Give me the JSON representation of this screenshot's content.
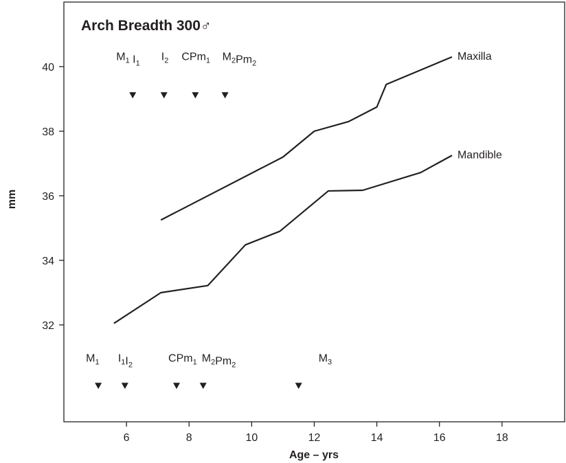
{
  "chart_data": {
    "type": "line",
    "title": "Arch Breadth 300♂",
    "xlabel": "Age – yrs",
    "ylabel": "mm",
    "xlim": [
      4,
      20
    ],
    "xticks": [
      6,
      8,
      10,
      12,
      14,
      16,
      18
    ],
    "ylim": [
      29,
      42
    ],
    "yticks": [
      32,
      34,
      36,
      38,
      40
    ],
    "grid": false,
    "series": [
      {
        "name": "Maxilla",
        "color": "#231f20",
        "x": [
          7.1,
          11.0,
          12.0,
          13.1,
          14.0,
          14.3,
          16.4
        ],
        "values": [
          35.25,
          37.2,
          38.0,
          38.3,
          38.75,
          39.45,
          40.3
        ]
      },
      {
        "name": "Mandible",
        "color": "#231f20",
        "x": [
          5.6,
          7.1,
          8.6,
          9.8,
          10.9,
          12.45,
          13.55,
          15.4,
          16.4
        ],
        "values": [
          32.05,
          33.0,
          33.22,
          34.48,
          34.9,
          36.15,
          36.17,
          36.72,
          37.25
        ]
      }
    ],
    "annotations": [
      {
        "markers": [
          {
            "x": 6.2,
            "y": 39.1
          },
          {
            "x": 7.2,
            "y": 39.1
          },
          {
            "x": 8.2,
            "y": 39.1
          },
          {
            "x": 9.15,
            "y": 39.1
          }
        ],
        "labels": [
          [
            {
              "text": "M",
              "sub": "1"
            },
            {
              "text": " I",
              "sub": "1"
            }
          ],
          [
            {
              "text": "I",
              "sub": "2"
            }
          ],
          [
            {
              "text": "CPm",
              "sub": "1"
            }
          ],
          [
            {
              "text": "M",
              "sub": "2"
            },
            {
              "text": "Pm",
              "sub": "2"
            }
          ]
        ]
      },
      {
        "markers": [
          {
            "x": 5.1,
            "y": 30.1
          },
          {
            "x": 5.95,
            "y": 30.1
          },
          {
            "x": 7.6,
            "y": 30.1
          },
          {
            "x": 8.45,
            "y": 30.1
          },
          {
            "x": 11.5,
            "y": 30.1
          }
        ],
        "labels": [
          [
            {
              "text": "M",
              "sub": "1"
            }
          ],
          [
            {
              "text": "I",
              "sub": "1"
            },
            {
              "text": "I",
              "sub": "2"
            }
          ],
          [
            {
              "text": "CPm",
              "sub": "1"
            }
          ],
          [
            {
              "text": "M",
              "sub": "2"
            },
            {
              "text": "Pm",
              "sub": "2"
            }
          ],
          [
            {
              "text": "M",
              "sub": "3"
            }
          ]
        ]
      }
    ]
  }
}
